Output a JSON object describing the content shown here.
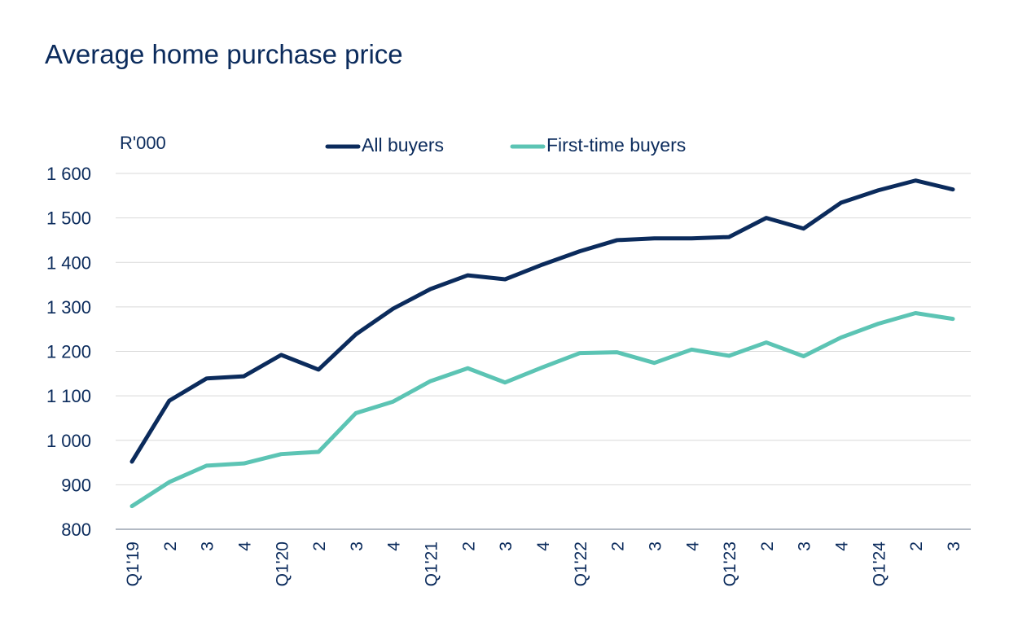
{
  "chart_data": {
    "type": "line",
    "title": "Average home purchase price",
    "ylabel": "R'000",
    "xlabel": "",
    "ylim": [
      800,
      1600
    ],
    "yticks": [
      800,
      900,
      1000,
      1100,
      1200,
      1300,
      1400,
      1500,
      1600
    ],
    "ytick_labels": [
      "800",
      "900",
      "1 000",
      "1 100",
      "1 200",
      "1 300",
      "1 400",
      "1 500",
      "1 600"
    ],
    "grid": true,
    "legend_position": "top-center",
    "categories": [
      "Q1'19",
      "2",
      "3",
      "4",
      "Q1'20",
      "2",
      "3",
      "4",
      "Q1'21",
      "2",
      "3",
      "4",
      "Q1'22",
      "2",
      "3",
      "4",
      "Q1'23",
      "2",
      "3",
      "4",
      "Q1'24",
      "2",
      "3"
    ],
    "series": [
      {
        "name": "All buyers",
        "color": "#0b2b5c",
        "values": [
          952,
          1089,
          1139,
          1144,
          1192,
          1159,
          1238,
          1296,
          1340,
          1371,
          1362,
          1395,
          1425,
          1450,
          1454,
          1454,
          1457,
          1500,
          1476,
          1534,
          1562,
          1584,
          1564
        ]
      },
      {
        "name": "First-time buyers",
        "color": "#5cc4b4",
        "values": [
          852,
          906,
          943,
          948,
          969,
          974,
          1061,
          1087,
          1133,
          1162,
          1130,
          1164,
          1196,
          1198,
          1174,
          1204,
          1190,
          1220,
          1189,
          1231,
          1262,
          1286,
          1273
        ]
      }
    ]
  }
}
